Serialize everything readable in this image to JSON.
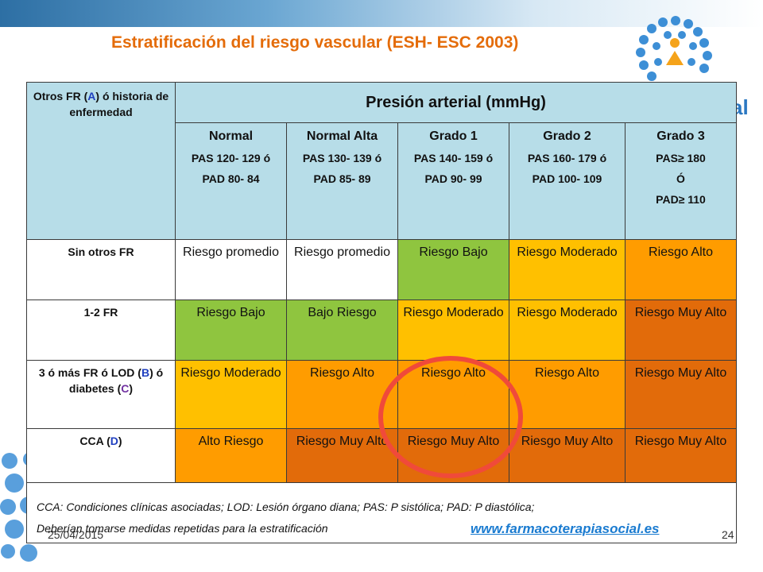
{
  "title": "Estratificación del riesgo vascular (ESH- ESC 2003)",
  "header": {
    "left_parts": [
      {
        "text": "Otros FR ("
      },
      {
        "text": "A",
        "color": "blue"
      },
      {
        "text": ") ó historia de enfermedad"
      }
    ],
    "main": "Presión arterial (mmHg)"
  },
  "grades": [
    {
      "name": "Normal",
      "lines": [
        "PAS 120- 129 ó",
        "PAD 80- 84"
      ]
    },
    {
      "name": "Normal Alta",
      "lines": [
        "PAS 130- 139 ó",
        "PAD 85- 89"
      ]
    },
    {
      "name": "Grado 1",
      "lines": [
        "PAS 140- 159 ó",
        "PAD 90- 99"
      ]
    },
    {
      "name": "Grado 2",
      "lines": [
        "PAS 160- 179 ó",
        "PAD 100- 109"
      ]
    },
    {
      "name": "Grado 3",
      "lines": [
        "PAS≥ 180",
        "Ó",
        "PAD≥ 110"
      ]
    }
  ],
  "rows": [
    {
      "label_parts": [
        {
          "text": "Sin otros FR"
        }
      ],
      "cells": [
        {
          "text": "Riesgo promedio",
          "level": "white"
        },
        {
          "text": "Riesgo promedio",
          "level": "white"
        },
        {
          "text": "Riesgo Bajo",
          "level": "green"
        },
        {
          "text": "Riesgo Moderado",
          "level": "yellow"
        },
        {
          "text": "Riesgo Alto",
          "level": "orange"
        }
      ]
    },
    {
      "label_parts": [
        {
          "text": "1-2 FR"
        }
      ],
      "cells": [
        {
          "text": "Riesgo Bajo",
          "level": "green"
        },
        {
          "text": "Bajo Riesgo",
          "level": "green"
        },
        {
          "text": "Riesgo Moderado",
          "level": "yellow"
        },
        {
          "text": "Riesgo Moderado",
          "level": "yellow"
        },
        {
          "text": "Riesgo Muy Alto",
          "level": "dark"
        }
      ]
    },
    {
      "label_parts": [
        {
          "text": "3 ó más FR ó LOD ("
        },
        {
          "text": "B",
          "color": "blue"
        },
        {
          "text": ") ó diabetes ("
        },
        {
          "text": "C",
          "color": "purple"
        },
        {
          "text": ")"
        }
      ],
      "cells": [
        {
          "text": "Riesgo Moderado",
          "level": "yellow"
        },
        {
          "text": "Riesgo Alto",
          "level": "orange"
        },
        {
          "text": "Riesgo Alto",
          "level": "orange"
        },
        {
          "text": "Riesgo Alto",
          "level": "orange"
        },
        {
          "text": "Riesgo Muy Alto",
          "level": "dark"
        }
      ]
    },
    {
      "label_parts": [
        {
          "text": "CCA ("
        },
        {
          "text": "D",
          "color": "blue"
        },
        {
          "text": ")"
        }
      ],
      "cells": [
        {
          "text": "Alto Riesgo",
          "level": "orange"
        },
        {
          "text": "Riesgo Muy Alto",
          "level": "dark"
        },
        {
          "text": "Riesgo Muy Alto",
          "level": "dark"
        },
        {
          "text": "Riesgo Muy Alto",
          "level": "dark"
        },
        {
          "text": "Riesgo Muy Alto",
          "level": "dark"
        }
      ]
    }
  ],
  "footnotes": [
    "CCA: Condiciones clínicas asociadas; LOD: Lesión órgano diana; PAS: P sistólica; PAD: P diastólica;",
    "Deberían tomarse medidas repetidas para la estratificación"
  ],
  "date": "25/04/2015",
  "page_number": "24",
  "website": "www.farmacoterapiasocial.es",
  "colors": {
    "title": "#e46c0a",
    "header": "#b7dde8",
    "white": "#ffffff",
    "green": "#8fc53f",
    "yellow": "#ffc000",
    "orange": "#ff9c00",
    "dark": "#e26b0a",
    "highlight_circle": "#f04a3a",
    "letter_blue": "#1f3fbf",
    "letter_purple": "#7030a0"
  }
}
